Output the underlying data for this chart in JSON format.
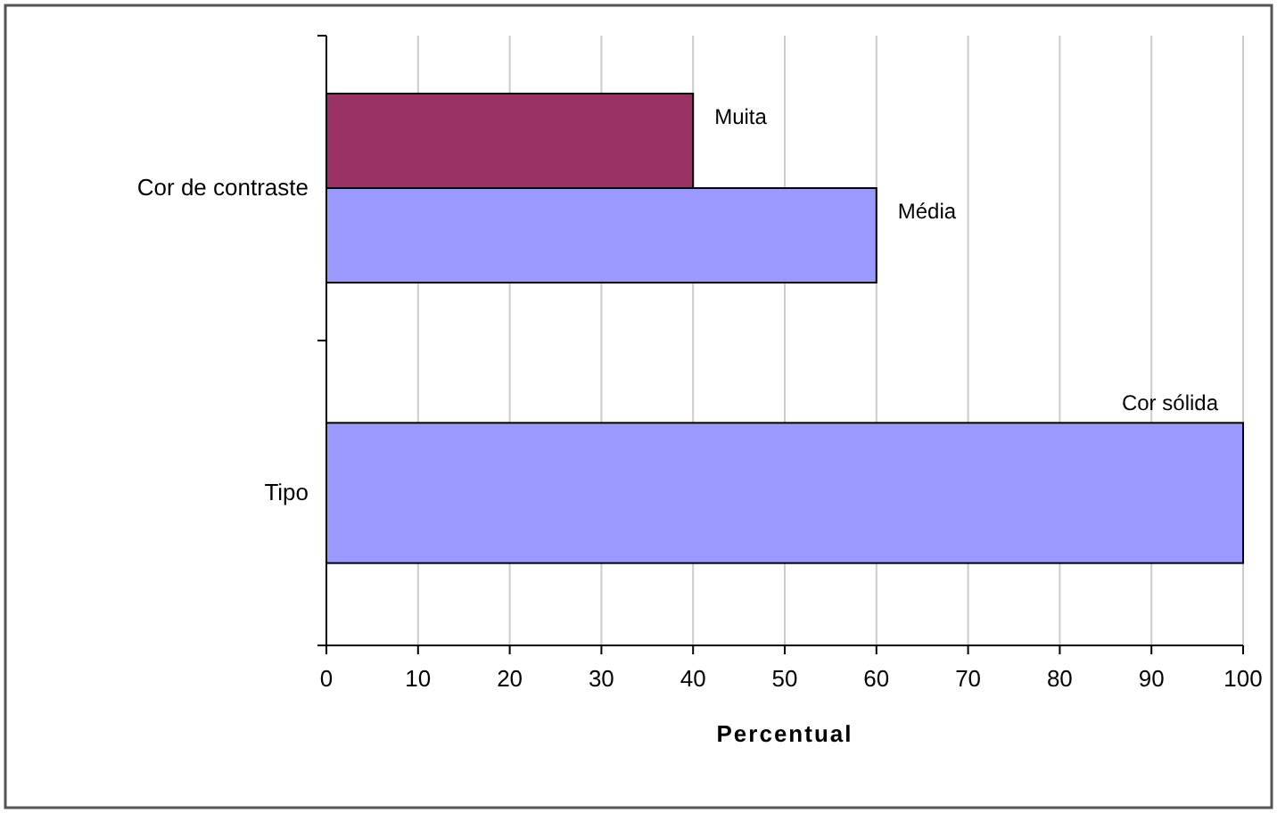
{
  "chart_data": {
    "type": "bar",
    "orientation": "horizontal",
    "categories": [
      "Cor de contraste",
      "Tipo"
    ],
    "series": [
      {
        "name": "Muita",
        "color": "#993366",
        "values": [
          40,
          null
        ]
      },
      {
        "name": "Média",
        "color": "#9999ff",
        "values": [
          60,
          null
        ]
      },
      {
        "name": "Cor sólida",
        "color": "#9999ff",
        "values": [
          null,
          100
        ]
      }
    ],
    "xlim": [
      0,
      100
    ],
    "xticks": [
      0,
      10,
      20,
      30,
      40,
      50,
      60,
      70,
      80,
      90,
      100
    ],
    "xlabel": "Percentual",
    "grid": "x"
  }
}
